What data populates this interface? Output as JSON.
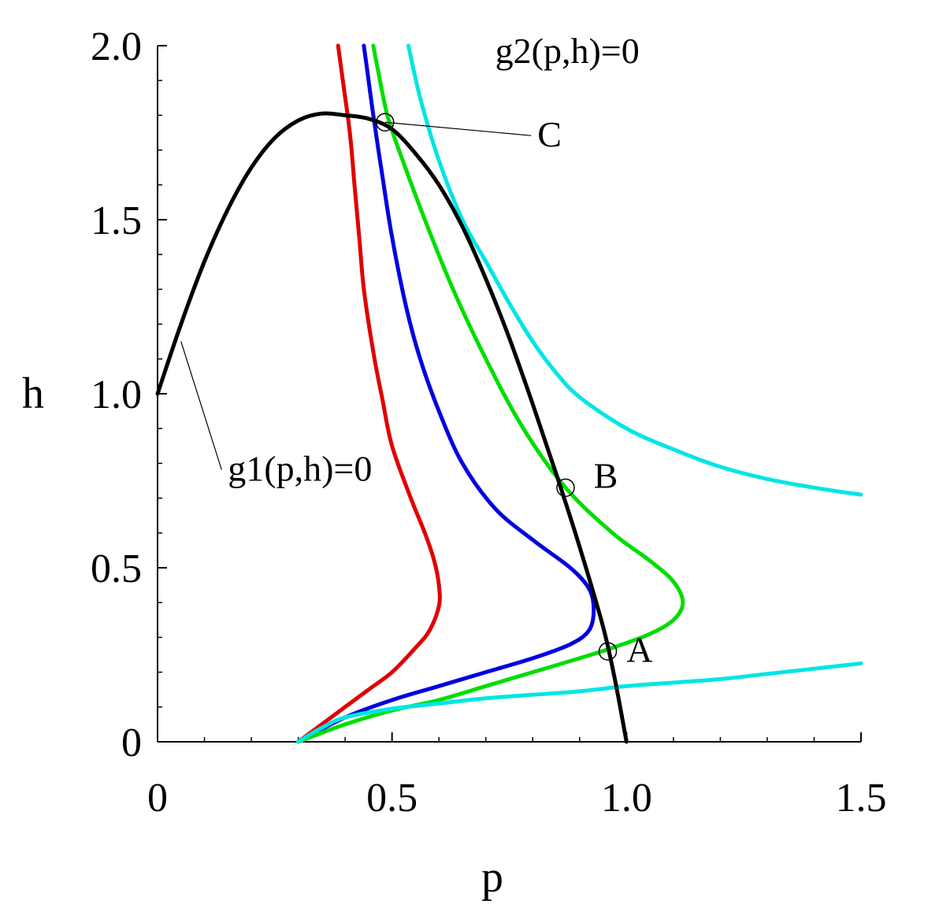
{
  "chart_data": {
    "type": "line",
    "xlabel": "p",
    "ylabel": "h",
    "xlim": [
      0,
      1.5
    ],
    "ylim": [
      0,
      2.0
    ],
    "x_ticks": [
      {
        "value": 0,
        "label": "0"
      },
      {
        "value": 0.5,
        "label": "0.5"
      },
      {
        "value": 1.0,
        "label": "1.0"
      },
      {
        "value": 1.5,
        "label": "1.5"
      }
    ],
    "y_ticks": [
      {
        "value": 0,
        "label": "0"
      },
      {
        "value": 0.5,
        "label": "0.5"
      },
      {
        "value": 1.0,
        "label": "1.0"
      },
      {
        "value": 1.5,
        "label": "1.5"
      },
      {
        "value": 2.0,
        "label": "2.0"
      }
    ],
    "minor_tick_step": 0.1,
    "grid": false,
    "series": [
      {
        "id": "g1",
        "color": "#000000",
        "points": [
          [
            0,
            1.0
          ],
          [
            0.05,
            1.2
          ],
          [
            0.1,
            1.38
          ],
          [
            0.15,
            1.53
          ],
          [
            0.2,
            1.65
          ],
          [
            0.25,
            1.735
          ],
          [
            0.3,
            1.785
          ],
          [
            0.35,
            1.805
          ],
          [
            0.4,
            1.8
          ],
          [
            0.45,
            1.79
          ],
          [
            0.5,
            1.76
          ],
          [
            0.55,
            1.69
          ],
          [
            0.6,
            1.6
          ],
          [
            0.65,
            1.48
          ],
          [
            0.7,
            1.33
          ],
          [
            0.75,
            1.16
          ],
          [
            0.8,
            0.97
          ],
          [
            0.85,
            0.77
          ],
          [
            0.9,
            0.56
          ],
          [
            0.95,
            0.33
          ],
          [
            0.975,
            0.18
          ],
          [
            1.0,
            0.0
          ]
        ]
      },
      {
        "id": "g2-red",
        "color": "#e00000",
        "points": [
          [
            0.3,
            0.0
          ],
          [
            0.35,
            0.05
          ],
          [
            0.4,
            0.1
          ],
          [
            0.45,
            0.15
          ],
          [
            0.5,
            0.2
          ],
          [
            0.55,
            0.27
          ],
          [
            0.58,
            0.32
          ],
          [
            0.6,
            0.39
          ],
          [
            0.6,
            0.45
          ],
          [
            0.59,
            0.52
          ],
          [
            0.57,
            0.6
          ],
          [
            0.54,
            0.7
          ],
          [
            0.5,
            0.85
          ],
          [
            0.48,
            0.98
          ],
          [
            0.46,
            1.12
          ],
          [
            0.44,
            1.3
          ],
          [
            0.43,
            1.45
          ],
          [
            0.42,
            1.6
          ],
          [
            0.41,
            1.75
          ],
          [
            0.395,
            1.9
          ],
          [
            0.385,
            2.0
          ]
        ]
      },
      {
        "id": "g2-blue",
        "color": "#0000e0",
        "points": [
          [
            0.3,
            0.0
          ],
          [
            0.4,
            0.07
          ],
          [
            0.5,
            0.12
          ],
          [
            0.6,
            0.16
          ],
          [
            0.7,
            0.2
          ],
          [
            0.8,
            0.24
          ],
          [
            0.88,
            0.28
          ],
          [
            0.92,
            0.32
          ],
          [
            0.93,
            0.38
          ],
          [
            0.92,
            0.44
          ],
          [
            0.88,
            0.5
          ],
          [
            0.8,
            0.58
          ],
          [
            0.72,
            0.67
          ],
          [
            0.65,
            0.8
          ],
          [
            0.6,
            0.95
          ],
          [
            0.56,
            1.1
          ],
          [
            0.53,
            1.25
          ],
          [
            0.5,
            1.45
          ],
          [
            0.48,
            1.62
          ],
          [
            0.46,
            1.8
          ],
          [
            0.445,
            1.95
          ],
          [
            0.44,
            2.0
          ]
        ]
      },
      {
        "id": "g2-green",
        "color": "#00dd00",
        "points": [
          [
            0.3,
            0.0
          ],
          [
            0.4,
            0.05
          ],
          [
            0.5,
            0.09
          ],
          [
            0.6,
            0.12
          ],
          [
            0.7,
            0.16
          ],
          [
            0.8,
            0.2
          ],
          [
            0.9,
            0.24
          ],
          [
            0.97,
            0.27
          ],
          [
            1.05,
            0.31
          ],
          [
            1.1,
            0.35
          ],
          [
            1.12,
            0.4
          ],
          [
            1.1,
            0.46
          ],
          [
            1.05,
            0.52
          ],
          [
            0.97,
            0.6
          ],
          [
            0.87,
            0.73
          ],
          [
            0.78,
            0.9
          ],
          [
            0.7,
            1.1
          ],
          [
            0.63,
            1.3
          ],
          [
            0.57,
            1.5
          ],
          [
            0.52,
            1.68
          ],
          [
            0.49,
            1.8
          ],
          [
            0.47,
            1.93
          ],
          [
            0.46,
            2.0
          ]
        ]
      },
      {
        "id": "g2-cyan-lower",
        "color": "#00e5e5",
        "points": [
          [
            0.3,
            0.0
          ],
          [
            0.35,
            0.04
          ],
          [
            0.4,
            0.07
          ],
          [
            0.5,
            0.095
          ],
          [
            0.6,
            0.11
          ],
          [
            0.7,
            0.125
          ],
          [
            0.8,
            0.135
          ],
          [
            0.9,
            0.145
          ],
          [
            1.0,
            0.16
          ],
          [
            1.1,
            0.17
          ],
          [
            1.2,
            0.18
          ],
          [
            1.3,
            0.195
          ],
          [
            1.4,
            0.21
          ],
          [
            1.5,
            0.225
          ]
        ]
      },
      {
        "id": "g2-cyan-upper",
        "color": "#00e5e5",
        "points": [
          [
            0.535,
            2.0
          ],
          [
            0.56,
            1.85
          ],
          [
            0.6,
            1.67
          ],
          [
            0.65,
            1.5
          ],
          [
            0.7,
            1.38
          ],
          [
            0.75,
            1.26
          ],
          [
            0.8,
            1.15
          ],
          [
            0.85,
            1.06
          ],
          [
            0.9,
            0.99
          ],
          [
            1.0,
            0.9
          ],
          [
            1.1,
            0.84
          ],
          [
            1.2,
            0.79
          ],
          [
            1.3,
            0.755
          ],
          [
            1.4,
            0.73
          ],
          [
            1.5,
            0.71
          ]
        ]
      }
    ],
    "annotations": [
      {
        "text": "g1(p,h)=0",
        "target": [
          0.05,
          1.15
        ],
        "label_at": [
          0.15,
          0.75
        ],
        "leader": true
      },
      {
        "text": "g2(p,h)=0",
        "target": null,
        "label_at": [
          0.72,
          1.95
        ],
        "leader": false
      },
      {
        "text": "C",
        "target": [
          0.485,
          1.78
        ],
        "label_at": [
          0.81,
          1.71
        ],
        "leader": true,
        "marker": true
      },
      {
        "text": "B",
        "target": [
          0.87,
          0.73
        ],
        "label_at": [
          0.93,
          0.73
        ],
        "leader": false,
        "marker": true
      },
      {
        "text": "A",
        "target": [
          0.96,
          0.26
        ],
        "label_at": [
          1.0,
          0.23
        ],
        "leader": false,
        "marker": true
      }
    ]
  }
}
